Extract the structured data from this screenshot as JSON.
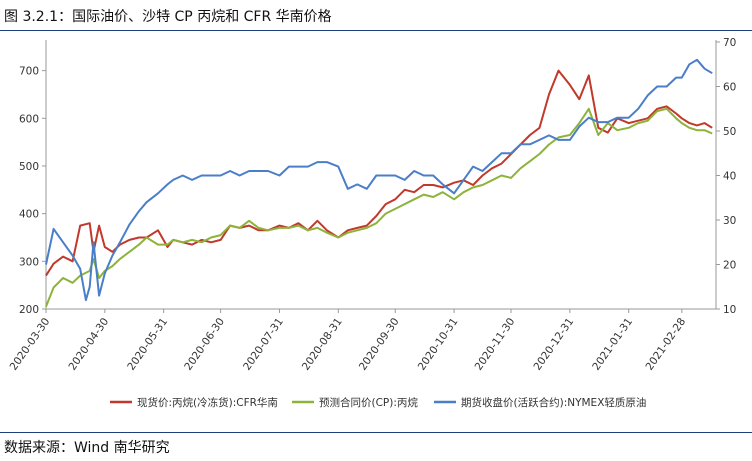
{
  "figure": {
    "title": "图 3.2.1：国际油价、沙特 CP 丙烷和 CFR 华南价格",
    "source": "数据来源：Wind 南华研究"
  },
  "chart_data": {
    "type": "line",
    "x_ticks": [
      "2020-03-30",
      "2020-04-30",
      "2020-05-31",
      "2020-06-30",
      "2020-07-31",
      "2020-08-31",
      "2020-09-30",
      "2020-10-31",
      "2020-11-30",
      "2020-12-31",
      "2021-01-31",
      "2021-02-28"
    ],
    "x_range": [
      "2020-03-30",
      "2021-03-18"
    ],
    "y_left": {
      "ticks": [
        200,
        300,
        400,
        500,
        600,
        700
      ],
      "lim": [
        200,
        760
      ]
    },
    "y_right": {
      "ticks": [
        10,
        20,
        30,
        40,
        50,
        60,
        70
      ],
      "lim": [
        10,
        70
      ]
    },
    "grid": false,
    "legend_position": "bottom",
    "colors": {
      "red": "#c0392b",
      "green": "#8db33a",
      "blue": "#4a7ec8"
    },
    "series": [
      {
        "name": "现货价:丙烷(冷冻货):CFR华南",
        "axis": "left",
        "color": "#c0392b",
        "x": [
          "2020-03-30",
          "2020-04-03",
          "2020-04-08",
          "2020-04-13",
          "2020-04-17",
          "2020-04-22",
          "2020-04-24",
          "2020-04-27",
          "2020-04-30",
          "2020-05-04",
          "2020-05-08",
          "2020-05-13",
          "2020-05-18",
          "2020-05-22",
          "2020-05-28",
          "2020-06-02",
          "2020-06-05",
          "2020-06-10",
          "2020-06-15",
          "2020-06-20",
          "2020-06-25",
          "2020-06-30",
          "2020-07-05",
          "2020-07-10",
          "2020-07-15",
          "2020-07-20",
          "2020-07-25",
          "2020-07-31",
          "2020-08-05",
          "2020-08-10",
          "2020-08-15",
          "2020-08-20",
          "2020-08-25",
          "2020-08-31",
          "2020-09-05",
          "2020-09-10",
          "2020-09-15",
          "2020-09-20",
          "2020-09-25",
          "2020-09-30",
          "2020-10-05",
          "2020-10-10",
          "2020-10-15",
          "2020-10-20",
          "2020-10-25",
          "2020-10-31",
          "2020-11-05",
          "2020-11-10",
          "2020-11-15",
          "2020-11-20",
          "2020-11-25",
          "2020-11-30",
          "2020-12-05",
          "2020-12-10",
          "2020-12-15",
          "2020-12-20",
          "2020-12-25",
          "2020-12-31",
          "2021-01-05",
          "2021-01-10",
          "2021-01-15",
          "2021-01-20",
          "2021-01-25",
          "2021-01-31",
          "2021-02-05",
          "2021-02-10",
          "2021-02-15",
          "2021-02-20",
          "2021-02-25",
          "2021-02-28",
          "2021-03-04",
          "2021-03-08",
          "2021-03-12",
          "2021-03-16"
        ],
        "values": [
          270,
          295,
          310,
          300,
          375,
          380,
          320,
          375,
          330,
          320,
          335,
          345,
          350,
          350,
          365,
          330,
          345,
          340,
          335,
          345,
          340,
          345,
          375,
          370,
          375,
          365,
          365,
          375,
          370,
          380,
          365,
          385,
          365,
          350,
          365,
          370,
          375,
          395,
          420,
          430,
          450,
          445,
          460,
          460,
          455,
          465,
          470,
          460,
          480,
          495,
          505,
          525,
          545,
          565,
          580,
          650,
          700,
          670,
          640,
          690,
          580,
          570,
          600,
          590,
          595,
          600,
          620,
          625,
          610,
          600,
          590,
          585,
          590,
          580
        ]
      },
      {
        "name": "预测合同价(CP):丙烷",
        "axis": "left",
        "color": "#8db33a",
        "x": [
          "2020-03-30",
          "2020-04-03",
          "2020-04-08",
          "2020-04-13",
          "2020-04-17",
          "2020-04-22",
          "2020-04-24",
          "2020-04-27",
          "2020-04-30",
          "2020-05-04",
          "2020-05-08",
          "2020-05-13",
          "2020-05-18",
          "2020-05-22",
          "2020-05-28",
          "2020-06-02",
          "2020-06-05",
          "2020-06-10",
          "2020-06-15",
          "2020-06-20",
          "2020-06-25",
          "2020-06-30",
          "2020-07-05",
          "2020-07-10",
          "2020-07-15",
          "2020-07-20",
          "2020-07-25",
          "2020-07-31",
          "2020-08-05",
          "2020-08-10",
          "2020-08-15",
          "2020-08-20",
          "2020-08-25",
          "2020-08-31",
          "2020-09-05",
          "2020-09-10",
          "2020-09-15",
          "2020-09-20",
          "2020-09-25",
          "2020-09-30",
          "2020-10-05",
          "2020-10-10",
          "2020-10-15",
          "2020-10-20",
          "2020-10-25",
          "2020-10-31",
          "2020-11-05",
          "2020-11-10",
          "2020-11-15",
          "2020-11-20",
          "2020-11-25",
          "2020-11-30",
          "2020-12-05",
          "2020-12-10",
          "2020-12-15",
          "2020-12-20",
          "2020-12-25",
          "2020-12-31",
          "2021-01-05",
          "2021-01-10",
          "2021-01-15",
          "2021-01-20",
          "2021-01-25",
          "2021-01-31",
          "2021-02-05",
          "2021-02-10",
          "2021-02-15",
          "2021-02-20",
          "2021-02-25",
          "2021-02-28",
          "2021-03-04",
          "2021-03-08",
          "2021-03-12",
          "2021-03-16"
        ],
        "values": [
          205,
          245,
          265,
          255,
          270,
          280,
          305,
          265,
          280,
          290,
          305,
          320,
          335,
          350,
          335,
          335,
          345,
          340,
          345,
          340,
          350,
          355,
          375,
          370,
          385,
          370,
          365,
          370,
          370,
          375,
          365,
          370,
          360,
          350,
          360,
          365,
          370,
          380,
          400,
          410,
          420,
          430,
          440,
          435,
          445,
          430,
          445,
          455,
          460,
          470,
          480,
          475,
          495,
          510,
          525,
          545,
          560,
          565,
          590,
          620,
          565,
          590,
          575,
          580,
          590,
          595,
          615,
          620,
          600,
          590,
          580,
          575,
          575,
          568
        ]
      },
      {
        "name": "期货收盘价(活跃合约):NYMEX轻质原油",
        "axis": "right",
        "color": "#4a7ec8",
        "x": [
          "2020-03-30",
          "2020-04-03",
          "2020-04-08",
          "2020-04-13",
          "2020-04-17",
          "2020-04-20",
          "2020-04-22",
          "2020-04-24",
          "2020-04-27",
          "2020-04-30",
          "2020-05-04",
          "2020-05-08",
          "2020-05-13",
          "2020-05-18",
          "2020-05-22",
          "2020-05-28",
          "2020-06-02",
          "2020-06-05",
          "2020-06-10",
          "2020-06-15",
          "2020-06-20",
          "2020-06-25",
          "2020-06-30",
          "2020-07-05",
          "2020-07-10",
          "2020-07-15",
          "2020-07-20",
          "2020-07-25",
          "2020-07-31",
          "2020-08-05",
          "2020-08-10",
          "2020-08-15",
          "2020-08-20",
          "2020-08-25",
          "2020-08-31",
          "2020-09-05",
          "2020-09-10",
          "2020-09-15",
          "2020-09-20",
          "2020-09-25",
          "2020-09-30",
          "2020-10-05",
          "2020-10-10",
          "2020-10-15",
          "2020-10-20",
          "2020-10-25",
          "2020-10-31",
          "2020-11-05",
          "2020-11-10",
          "2020-11-15",
          "2020-11-20",
          "2020-11-25",
          "2020-11-30",
          "2020-12-05",
          "2020-12-10",
          "2020-12-15",
          "2020-12-20",
          "2020-12-25",
          "2020-12-31",
          "2021-01-05",
          "2021-01-10",
          "2021-01-15",
          "2021-01-20",
          "2021-01-25",
          "2021-01-31",
          "2021-02-05",
          "2021-02-10",
          "2021-02-15",
          "2021-02-20",
          "2021-02-25",
          "2021-02-28",
          "2021-03-04",
          "2021-03-08",
          "2021-03-12",
          "2021-03-16"
        ],
        "values": [
          20,
          28,
          25,
          22,
          19,
          12,
          15,
          25,
          13,
          18,
          22,
          25,
          29,
          32,
          34,
          36,
          38,
          39,
          40,
          39,
          40,
          40,
          40,
          41,
          40,
          41,
          41,
          41,
          40,
          42,
          42,
          42,
          43,
          43,
          42,
          37,
          38,
          37,
          40,
          40,
          40,
          39,
          41,
          40,
          40,
          38,
          36,
          39,
          42,
          41,
          43,
          45,
          45,
          47,
          47,
          48,
          49,
          48,
          48,
          51,
          53,
          52,
          52,
          53,
          53,
          55,
          58,
          60,
          60,
          62,
          62,
          65,
          66,
          64,
          63
        ]
      }
    ]
  }
}
